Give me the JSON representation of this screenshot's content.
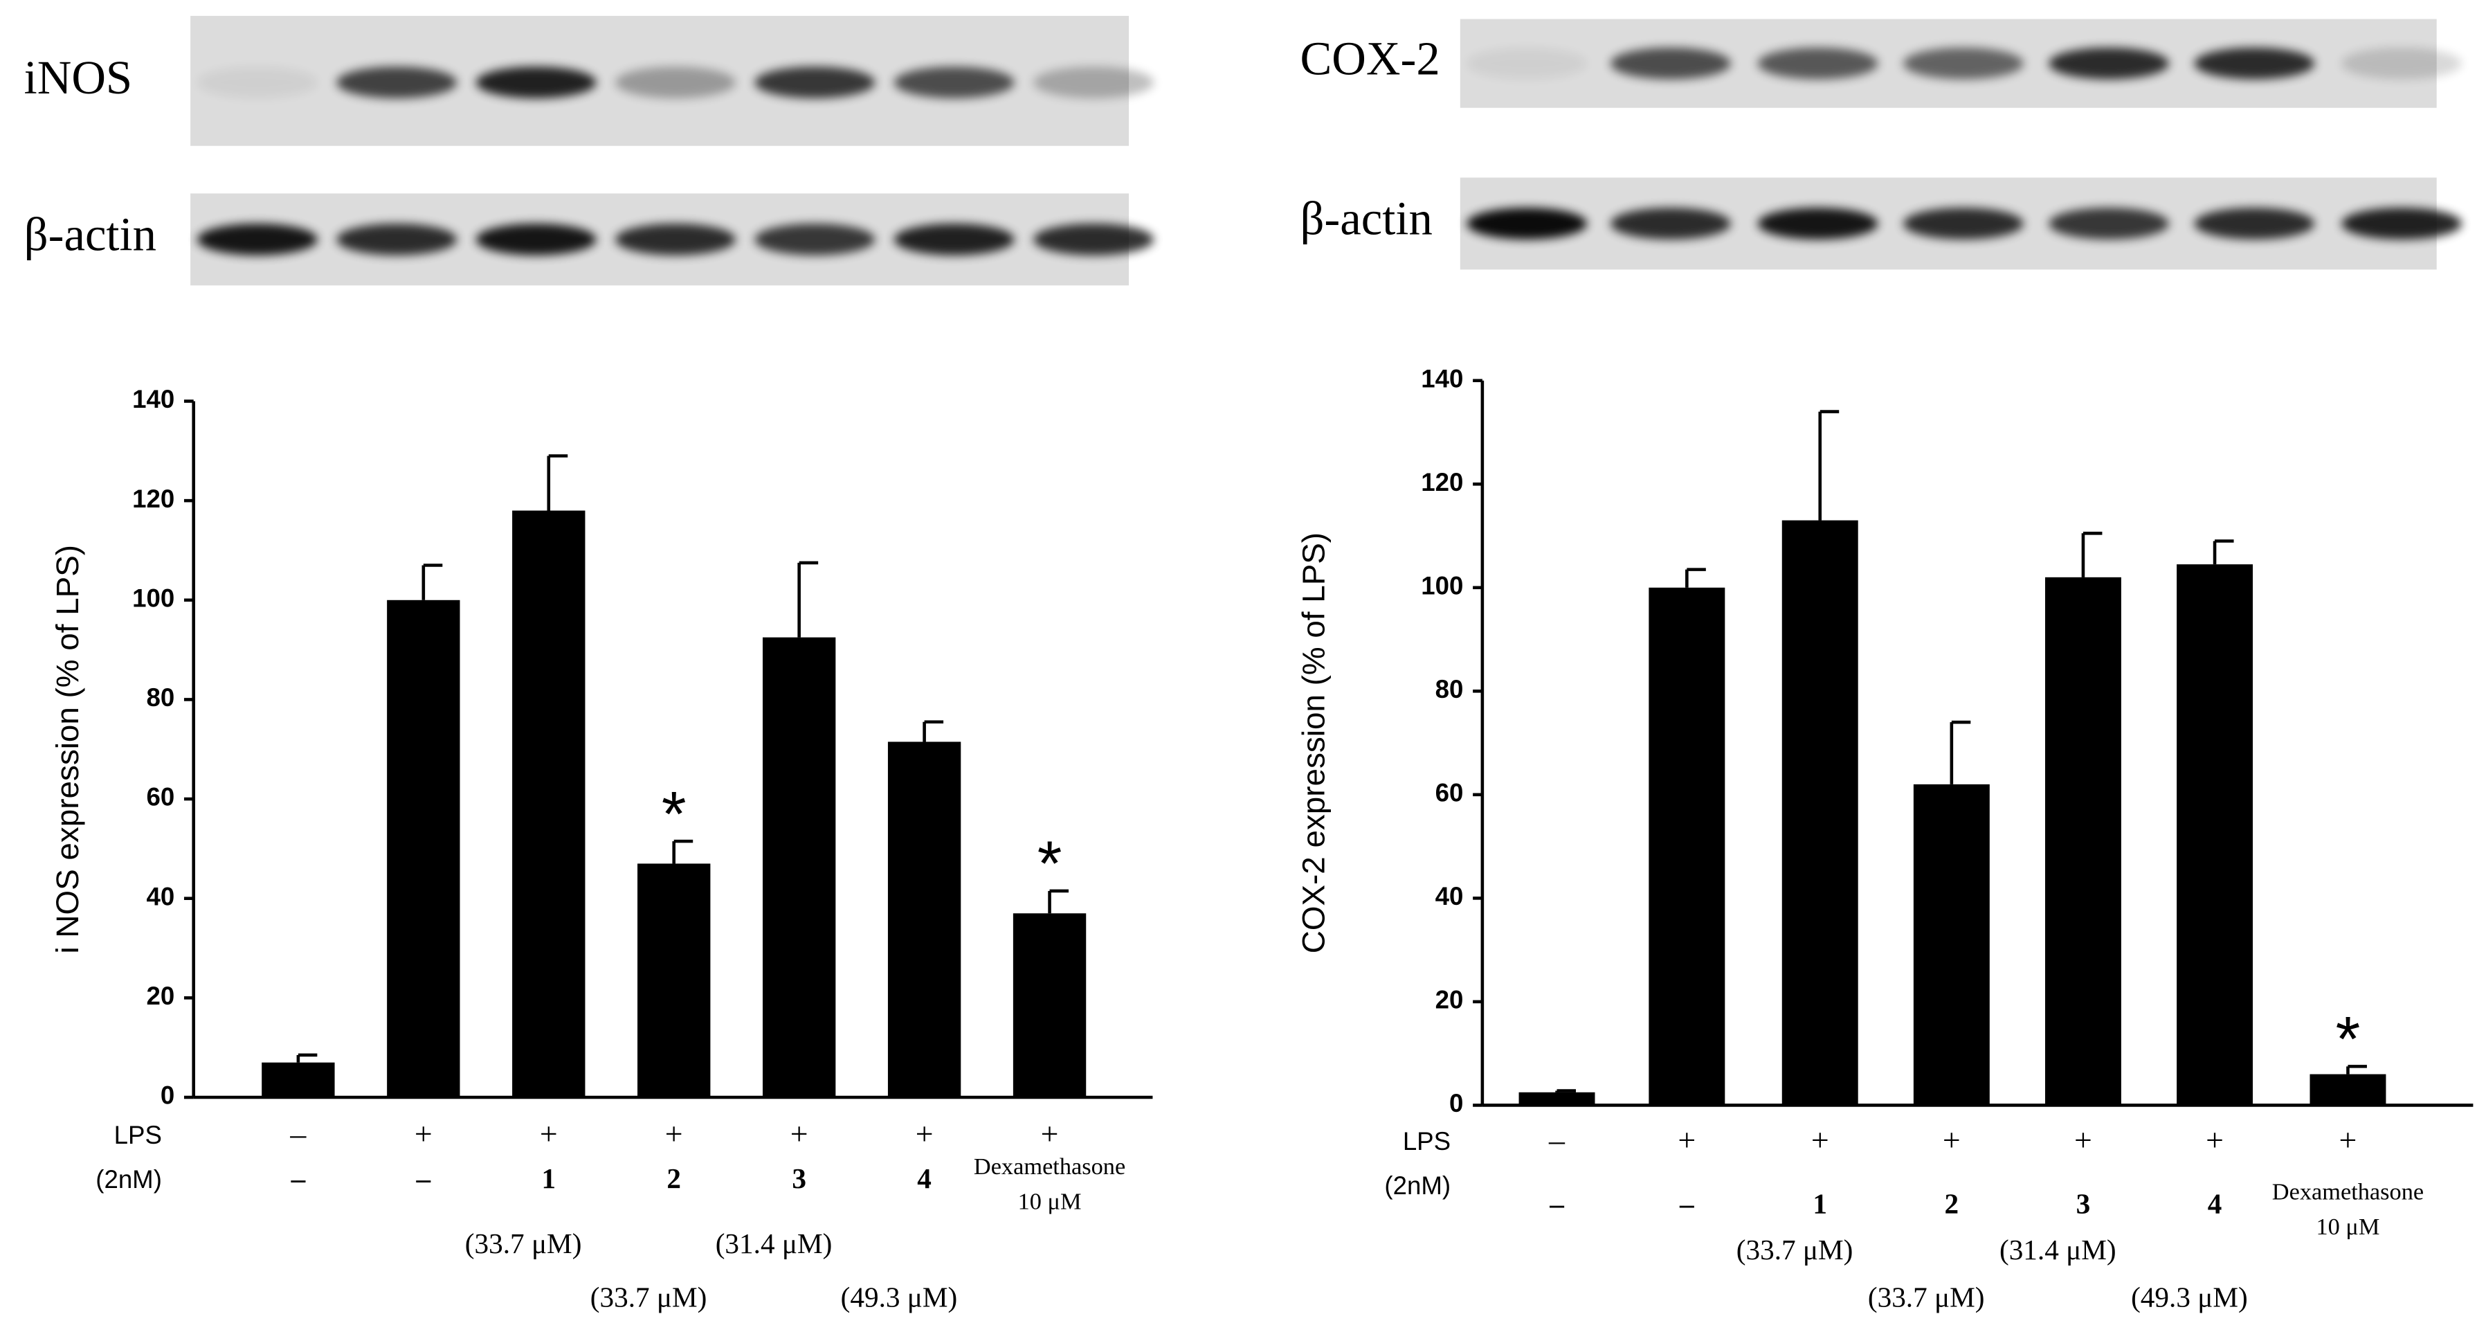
{
  "chart_data": [
    {
      "type": "bar",
      "blots": [
        "iNOS",
        "β-actin"
      ],
      "y_label": "i NOS expression (% of LPS)",
      "row_labels": [
        "LPS",
        "(2nM)"
      ],
      "lps": [
        "–",
        "+",
        "+",
        "+",
        "+",
        "+",
        "+"
      ],
      "categories": [
        "–",
        "–",
        "1",
        "2",
        "3",
        "4",
        "Dexamethasone"
      ],
      "doses": [
        null,
        null,
        "(33.7 μM)",
        "(33.7 μM)",
        "(31.4 μM)",
        "(49.3 μM)",
        "10 μM"
      ],
      "values": [
        7,
        100,
        118,
        47,
        92.5,
        71.5,
        37
      ],
      "errors": [
        1.5,
        7,
        11,
        4.5,
        15,
        4,
        4.5
      ],
      "significance": [
        null,
        null,
        null,
        "*",
        null,
        null,
        "*"
      ],
      "color": "#000000",
      "ylim": [
        0,
        140
      ],
      "yticks": [
        0,
        20,
        40,
        60,
        80,
        100,
        120,
        140
      ]
    },
    {
      "type": "bar",
      "blots": [
        "COX-2",
        "β-actin"
      ],
      "y_label": "COX-2 expression (% of LPS)",
      "row_labels": [
        "LPS",
        "(2nM)"
      ],
      "lps": [
        "–",
        "+",
        "+",
        "+",
        "+",
        "+",
        "+"
      ],
      "categories": [
        "–",
        "–",
        "1",
        "2",
        "3",
        "4",
        "Dexamethasone"
      ],
      "doses": [
        null,
        null,
        "(33.7 μM)",
        "(33.7 μM)",
        "(31.4 μM)",
        "(49.3 μM)",
        "10 μM"
      ],
      "values": [
        2.5,
        100,
        113,
        62,
        102,
        104.5,
        6
      ],
      "errors": [
        0.3,
        3.5,
        21,
        12,
        8.5,
        4.5,
        1.5
      ],
      "significance": [
        null,
        null,
        null,
        null,
        null,
        null,
        "*"
      ],
      "color": "#000000",
      "ylim": [
        0,
        140
      ],
      "yticks": [
        0,
        20,
        40,
        60,
        80,
        100,
        120,
        140
      ]
    }
  ]
}
